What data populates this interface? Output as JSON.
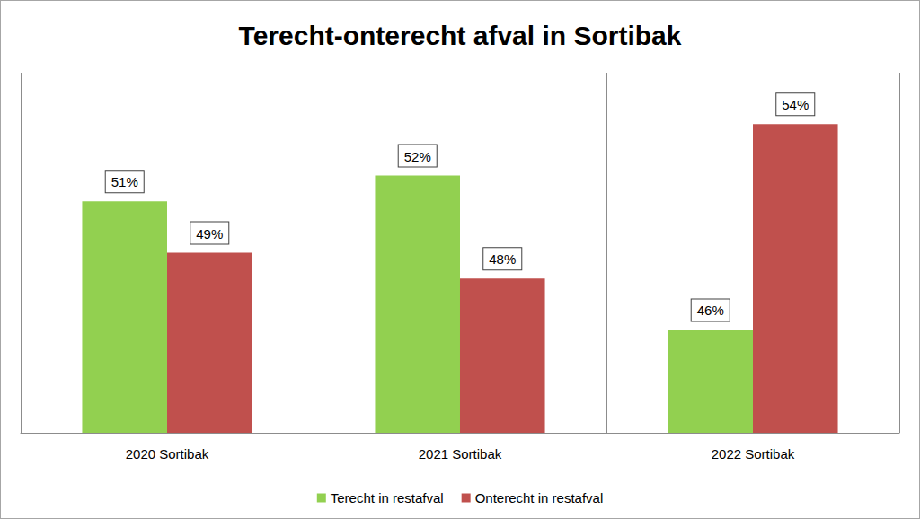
{
  "chart_data": {
    "type": "bar",
    "title": "Terecht-onterecht afval in Sortibak",
    "categories": [
      "2020 Sortibak",
      "2021 Sortibak",
      "2022 Sortibak"
    ],
    "series": [
      {
        "name": "Terecht in restafval",
        "color": "#92d050",
        "values": [
          51,
          52,
          46
        ],
        "value_labels": [
          "51%",
          "52%",
          "46%"
        ]
      },
      {
        "name": "Onterecht in restafval",
        "color": "#c0504d",
        "values": [
          49,
          48,
          54
        ],
        "value_labels": [
          "49%",
          "48%",
          "54%"
        ]
      }
    ],
    "ylim": [
      42,
      56
    ],
    "yticks": [
      42,
      56
    ],
    "grid": false,
    "legend": "bottom",
    "data_labels": true,
    "tick_labels": "x"
  }
}
